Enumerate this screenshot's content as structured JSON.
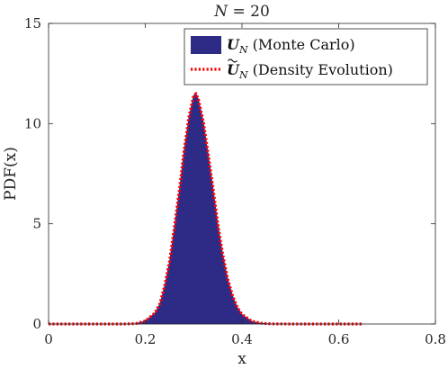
{
  "chart_data": {
    "type": "area",
    "title_var": "N",
    "title_eq": " = 20",
    "xlabel": "x",
    "ylabel": "PDF(x)",
    "xlim": [
      0,
      0.8
    ],
    "ylim": [
      0,
      15
    ],
    "xticks": [
      0,
      0.2,
      0.4,
      0.6,
      0.8
    ],
    "xtick_labels": [
      "0",
      "0.2",
      "0.4",
      "0.6",
      "0.8"
    ],
    "yticks": [
      0,
      5,
      10,
      15
    ],
    "ytick_labels": [
      "0",
      "5",
      "10",
      "15"
    ],
    "grid": false,
    "legend_position": "top-right",
    "series": [
      {
        "name_sym": "U",
        "name_sub": "N",
        "name_text": " (Monte Carlo)",
        "style": "filled-histogram",
        "color": "#2e2b87",
        "x": [
          0.0,
          0.05,
          0.1,
          0.15,
          0.18,
          0.2,
          0.22,
          0.23,
          0.24,
          0.25,
          0.26,
          0.27,
          0.28,
          0.29,
          0.3,
          0.305,
          0.31,
          0.32,
          0.33,
          0.34,
          0.35,
          0.36,
          0.37,
          0.38,
          0.39,
          0.4,
          0.42,
          0.44,
          0.46,
          0.5,
          0.55,
          0.6,
          0.65
        ],
        "y": [
          0.0,
          0.0,
          0.0,
          0.0,
          0.02,
          0.15,
          0.55,
          1.0,
          1.9,
          3.1,
          4.8,
          6.6,
          8.6,
          10.3,
          11.4,
          11.5,
          11.2,
          10.1,
          8.5,
          6.8,
          5.0,
          3.5,
          2.3,
          1.45,
          0.85,
          0.48,
          0.14,
          0.04,
          0.01,
          0.0,
          0.0,
          0.0,
          0.0
        ]
      },
      {
        "name_sym": "U",
        "name_sub": "N",
        "name_text": " (Density Evolution)",
        "style": "dotted-line",
        "color": "#ff0000",
        "x": [
          0.0,
          0.05,
          0.1,
          0.15,
          0.18,
          0.2,
          0.22,
          0.23,
          0.24,
          0.25,
          0.26,
          0.27,
          0.28,
          0.29,
          0.3,
          0.305,
          0.31,
          0.32,
          0.33,
          0.34,
          0.35,
          0.36,
          0.37,
          0.38,
          0.39,
          0.4,
          0.42,
          0.44,
          0.46,
          0.5,
          0.55,
          0.6,
          0.65
        ],
        "y": [
          0.0,
          0.0,
          0.0,
          0.0,
          0.02,
          0.15,
          0.55,
          1.0,
          1.9,
          3.1,
          4.8,
          6.6,
          8.6,
          10.3,
          11.4,
          11.5,
          11.2,
          10.1,
          8.5,
          6.8,
          5.0,
          3.5,
          2.3,
          1.45,
          0.85,
          0.48,
          0.14,
          0.04,
          0.01,
          0.0,
          0.0,
          0.0,
          0.0
        ]
      }
    ]
  }
}
